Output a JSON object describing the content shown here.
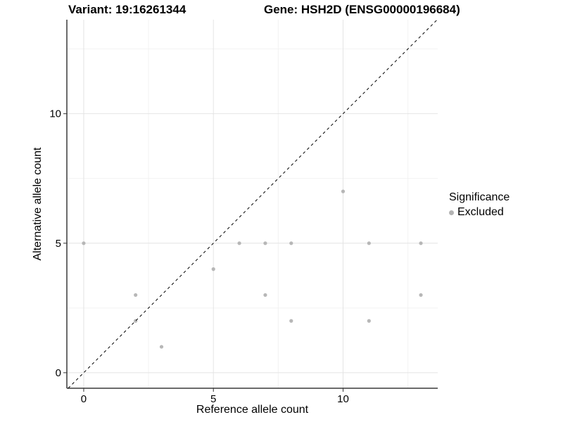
{
  "header": {
    "title_left": "Variant: 19:16261344",
    "title_right": "Gene: HSH2D (ENSG00000196684)"
  },
  "chart_data": {
    "type": "scatter",
    "xlabel": "Reference allele count",
    "ylabel": "Alternative allele count",
    "xlim": [
      -0.65,
      13.65
    ],
    "ylim": [
      -0.6,
      13.63
    ],
    "x_ticks": [
      0,
      5,
      10
    ],
    "y_ticks": [
      0,
      5,
      10
    ],
    "major_gridlines": [
      0,
      5,
      10
    ],
    "minor_gridlines": [
      2.5,
      7.5,
      12.5
    ],
    "grid": true,
    "legend": {
      "title": "Significance",
      "items": [
        {
          "label": "Excluded",
          "color": "#b3b3b3"
        }
      ],
      "position": "right-center"
    },
    "reference_line": {
      "type": "identity",
      "slope": 1,
      "intercept": 0,
      "style": "dashed",
      "color": "#000000"
    },
    "series": [
      {
        "name": "Excluded",
        "color": "#b3b3b3",
        "points": [
          [
            0,
            5
          ],
          [
            2,
            2
          ],
          [
            2,
            3
          ],
          [
            3,
            1
          ],
          [
            5,
            4
          ],
          [
            6,
            5
          ],
          [
            7,
            3
          ],
          [
            7,
            5
          ],
          [
            8,
            2
          ],
          [
            8,
            5
          ],
          [
            10,
            7
          ],
          [
            11,
            2
          ],
          [
            11,
            5
          ],
          [
            13,
            3
          ],
          [
            13,
            5
          ]
        ]
      }
    ],
    "colors": {
      "point": "#b3b3b3",
      "major_grid": "#e4e4e4",
      "minor_grid": "#f2f2f2",
      "axis_line": "#3a3a3a",
      "tick": "#333333",
      "text": "#000000"
    }
  }
}
